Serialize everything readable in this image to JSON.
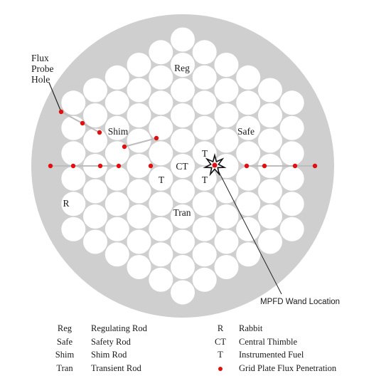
{
  "diagram": {
    "labels": {
      "flux_probe_line1": "Flux",
      "flux_probe_line2": "Probe",
      "flux_probe_line3": "Hole",
      "reg": "Reg",
      "shim": "Shim",
      "safe": "Safe",
      "ct": "CT",
      "t_top": "T",
      "t_left": "T",
      "t_right": "T",
      "tran": "Tran",
      "r": "R",
      "mpfd": "MPFD Wand Location"
    },
    "colors": {
      "plate": "#cfcfcf",
      "hole": "#ffffff",
      "penetration": "#e01010",
      "line": "#222222"
    }
  },
  "legend": {
    "left": [
      {
        "abbr": "Reg",
        "desc": "Regulating Rod"
      },
      {
        "abbr": "Safe",
        "desc": "Safety Rod"
      },
      {
        "abbr": "Shim",
        "desc": "Shim Rod"
      },
      {
        "abbr": "Tran",
        "desc": "Transient Rod"
      }
    ],
    "right": [
      {
        "abbr": "R",
        "desc": "Rabbit"
      },
      {
        "abbr": "CT",
        "desc": "Central Thimble"
      },
      {
        "abbr": "T",
        "desc": "Instrumented Fuel"
      },
      {
        "abbr": "dot",
        "desc": "Grid Plate Flux Penetration"
      }
    ]
  }
}
